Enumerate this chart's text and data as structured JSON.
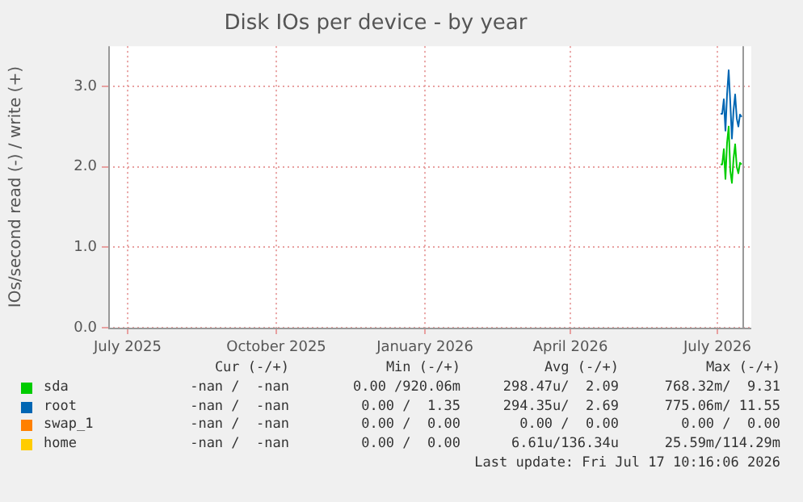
{
  "chart_data": {
    "type": "line",
    "title": "Disk IOs per device - by year",
    "ylabel": "IOs/second read (-) / write (+)",
    "x": [
      "2026-07-03",
      "2026-07-04",
      "2026-07-05",
      "2026-07-06",
      "2026-07-07",
      "2026-07-08",
      "2026-07-09",
      "2026-07-10",
      "2026-07-11",
      "2026-07-12",
      "2026-07-13",
      "2026-07-14",
      "2026-07-15",
      "2026-07-16"
    ],
    "series": [
      {
        "name": "sda",
        "color": "#00cc00",
        "values": [
          2.03,
          2.03,
          2.22,
          1.85,
          2.3,
          2.5,
          1.95,
          1.8,
          2.1,
          2.28,
          2.0,
          1.92,
          2.05,
          2.03
        ]
      },
      {
        "name": "root",
        "color": "#0066b3",
        "values": [
          2.66,
          2.66,
          2.84,
          2.45,
          2.9,
          3.2,
          2.8,
          2.35,
          2.7,
          2.9,
          2.6,
          2.5,
          2.65,
          2.62
        ]
      },
      {
        "name": "swap_1",
        "color": "#ff8000",
        "values": [
          null,
          null,
          null,
          null,
          null,
          null,
          null,
          null,
          null,
          null,
          null,
          null,
          null,
          null
        ]
      },
      {
        "name": "home",
        "color": "#ffcc00",
        "values": [
          null,
          null,
          null,
          null,
          null,
          null,
          null,
          null,
          null,
          null,
          null,
          null,
          null,
          null
        ]
      }
    ],
    "xlim": [
      "2025-06-19",
      "2026-07-22"
    ],
    "xticks": [
      {
        "value": "2025-07-01",
        "label": "July 2025"
      },
      {
        "value": "2025-10-01",
        "label": "October 2025"
      },
      {
        "value": "2026-01-01",
        "label": "January 2026"
      },
      {
        "value": "2026-04-01",
        "label": "April 2026"
      },
      {
        "value": "2026-07-01",
        "label": "July 2026"
      }
    ],
    "ylim": [
      0,
      3.5
    ],
    "yticks": [
      {
        "value": 0,
        "label": "0.0"
      },
      {
        "value": 1,
        "label": "1.0"
      },
      {
        "value": 2,
        "label": "2.0"
      },
      {
        "value": 3,
        "label": "3.0"
      }
    ],
    "grid": true,
    "legend": "bottom",
    "marker": "none",
    "line_style": "solid",
    "ref_lines": [
      {
        "axis": "x",
        "value": "2026-07-17",
        "color": "#999999"
      }
    ],
    "annotations": [
      "Cur (-/+)",
      "Min (-/+)",
      "Avg (-/+)",
      "Max (-/+)",
      "-nan /  -nan",
      "0.00 /920.06m",
      "298.47u/  2.09",
      "768.32m/  9.31",
      "-nan /  -nan",
      "0.00 /  1.35",
      "294.35u/  2.69",
      "775.06m/ 11.55",
      "-nan /  -nan",
      "0.00 /  0.00",
      "0.00 /  0.00",
      "0.00 /  0.00",
      "-nan /  -nan",
      "0.00 /  0.00",
      "6.61u/136.34u",
      "25.59m/114.29m",
      "Last update: Fri Jul 17 10:16:06 2026"
    ]
  }
}
